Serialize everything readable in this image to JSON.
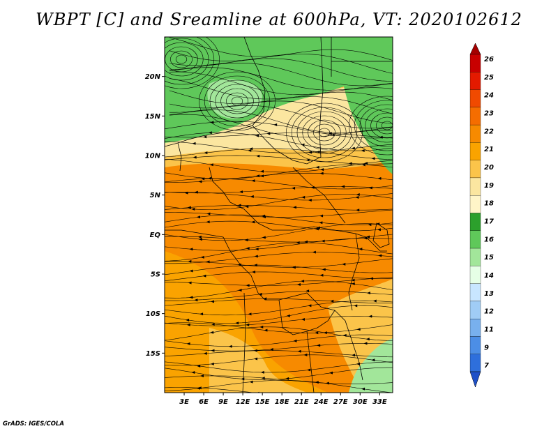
{
  "title": "WBPT [C] and Sreamline at 600hPa, VT: 2020102612",
  "footer": "GrADS: IGES/COLA",
  "map": {
    "lat_range": [
      -20,
      25
    ],
    "lon_range": [
      0,
      35
    ],
    "lat_ticks": [
      "20N",
      "15N",
      "10N",
      "5N",
      "EQ",
      "5S",
      "10S",
      "15S"
    ],
    "lon_ticks": [
      "3E",
      "6E",
      "9E",
      "12E",
      "15E",
      "18E",
      "21E",
      "24E",
      "27E",
      "30E",
      "33E"
    ]
  },
  "colorbar": {
    "levels": [
      "26",
      "25",
      "24",
      "23",
      "22",
      "21",
      "20",
      "19",
      "18",
      "17",
      "16",
      "15",
      "14",
      "13",
      "12",
      "11",
      "9",
      "7"
    ],
    "colors": [
      "#a50000",
      "#c80000",
      "#e41a00",
      "#f04a00",
      "#f56d00",
      "#f78a00",
      "#faa300",
      "#fbc44a",
      "#fbe6a0",
      "#fff5c8",
      "#2ca02c",
      "#5fc85a",
      "#a2e69a",
      "#e6ffe6",
      "#c8e6ff",
      "#a0ccf5",
      "#78b0ee",
      "#4c8ee6",
      "#2e6fdc",
      "#1e50c8"
    ]
  },
  "fields": {
    "north_green": "#5fc85a",
    "light_green": "#a2e69a",
    "light_yellow": "#fbe6a0",
    "yellow": "#fbc44a",
    "orange_light": "#faa300",
    "orange": "#f78a00",
    "streamline_color": "#000000",
    "border_color": "#000000"
  }
}
